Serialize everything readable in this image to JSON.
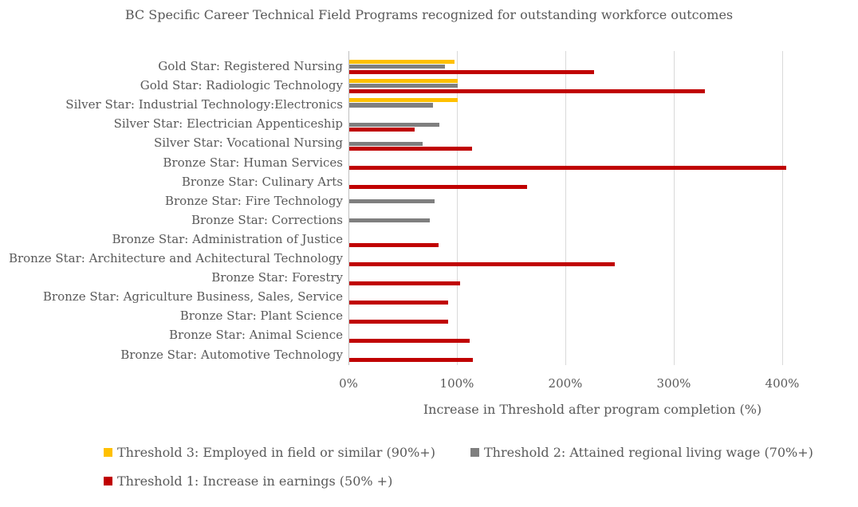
{
  "title": "BC Specific Career Technical Field Programs recognized for outstanding workforce outcomes",
  "colors": {
    "text": "#595959",
    "gridline": "#D9D9D9",
    "axis_line": "#BFBFBF",
    "background": "#FFFFFF",
    "threshold3_gold": "#FFC000",
    "threshold2_gray": "#7F7F7F",
    "threshold1_red": "#C00000"
  },
  "chart_data": {
    "type": "bar",
    "orientation": "horizontal",
    "title": "BC Specific Career Technical Field Programs recognized for outstanding workforce outcomes",
    "xlabel": "Increase in Threshold after program completion (%)",
    "ylabel": "",
    "xlim": [
      0,
      450
    ],
    "grid": true,
    "legend_position": "bottom",
    "xticks": [
      {
        "value": 0,
        "label": "0%"
      },
      {
        "value": 100,
        "label": "100%"
      },
      {
        "value": 200,
        "label": "200%"
      },
      {
        "value": 300,
        "label": "300%"
      },
      {
        "value": 400,
        "label": "400%"
      }
    ],
    "categories": [
      "Gold Star: Registered Nursing",
      "Gold Star: Radiologic Technology",
      "Silver Star: Industrial Technology:Electronics",
      "Silver Star: Electrician Appenticeship",
      "Silver Star: Vocational Nursing",
      "Bronze Star: Human Services",
      "Bronze Star: Culinary Arts",
      "Bronze Star: Fire Technology",
      "Bronze Star: Corrections",
      "Bronze Star: Administration of Justice",
      "Bronze Star: Architecture and Achitectural Technology",
      "Bronze Star: Forestry",
      "Bronze Star: Agriculture Business, Sales, Service",
      "Bronze Star: Plant Science",
      "Bronze Star: Animal Science",
      "Bronze Star: Automotive Technology"
    ],
    "series": [
      {
        "name": "Threshold 3: Employed in field or similar (90%+)",
        "color": "#FFC000",
        "values": [
          97,
          100,
          100,
          null,
          null,
          null,
          null,
          null,
          null,
          null,
          null,
          null,
          null,
          null,
          null,
          null
        ]
      },
      {
        "name": "Threshold 2: Attained regional living wage (70%+)",
        "color": "#7F7F7F",
        "values": [
          88,
          100,
          77,
          83,
          68,
          null,
          null,
          79,
          74,
          null,
          null,
          null,
          null,
          null,
          null,
          null
        ]
      },
      {
        "name": "Threshold 1: Increase in earnings (50% +)",
        "color": "#C00000",
        "values": [
          226,
          328,
          null,
          60,
          113,
          403,
          164,
          null,
          null,
          82,
          245,
          102,
          91,
          91,
          111,
          114
        ]
      }
    ]
  }
}
